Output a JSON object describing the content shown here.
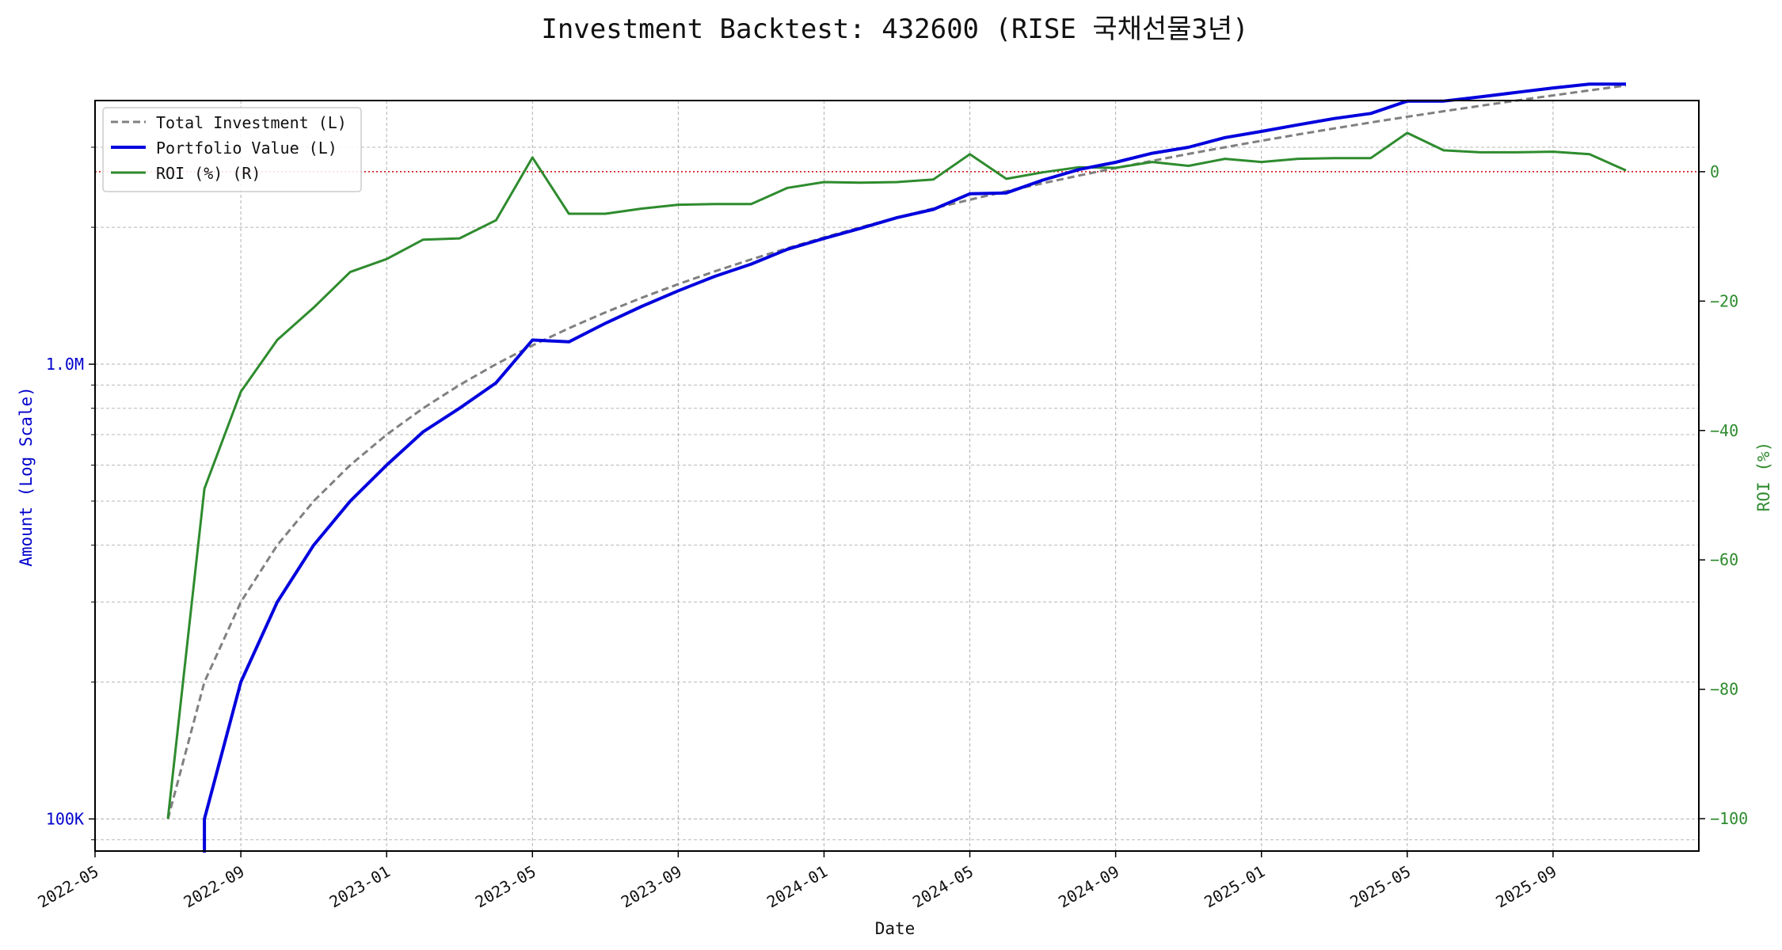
{
  "chart_data": {
    "type": "line",
    "title": "Investment Backtest: 432600 (RISE 국채선물3년)",
    "xlabel": "Date",
    "ylabel_left": "Amount (Log Scale)",
    "ylabel_right": "ROI (%)",
    "y_left_scale": "log",
    "x_range": [
      "2022-05",
      "2026-01"
    ],
    "y_left_range": [
      85000,
      3800000
    ],
    "y_right_range": [
      -105,
      11
    ],
    "x_ticks": [
      "2022-05",
      "2022-09",
      "2023-01",
      "2023-05",
      "2023-09",
      "2024-01",
      "2024-05",
      "2024-09",
      "2025-01",
      "2025-05",
      "2025-09"
    ],
    "y_left_ticks": [
      {
        "value": 100000,
        "label": "100K"
      },
      {
        "value": 1000000,
        "label": "1.0M"
      }
    ],
    "y_right_ticks": [
      {
        "value": 0,
        "label": "0"
      },
      {
        "value": -20,
        "label": "−20"
      },
      {
        "value": -40,
        "label": "−40"
      },
      {
        "value": -60,
        "label": "−60"
      },
      {
        "value": -80,
        "label": "−80"
      },
      {
        "value": -100,
        "label": "−100"
      }
    ],
    "grid": true,
    "legend_position": "top-left",
    "reference_line": {
      "axis": "right",
      "value": 0,
      "color": "#cc0000",
      "style": "dotted"
    },
    "x": [
      "2022-07",
      "2022-08",
      "2022-09",
      "2022-10",
      "2022-11",
      "2022-12",
      "2023-01",
      "2023-02",
      "2023-03",
      "2023-04",
      "2023-05",
      "2023-06",
      "2023-07",
      "2023-08",
      "2023-09",
      "2023-10",
      "2023-11",
      "2023-12",
      "2024-01",
      "2024-02",
      "2024-03",
      "2024-04",
      "2024-05",
      "2024-06",
      "2024-07",
      "2024-08",
      "2024-09",
      "2024-10",
      "2024-11",
      "2024-12",
      "2025-01",
      "2025-02",
      "2025-03",
      "2025-04",
      "2025-05",
      "2025-06",
      "2025-07",
      "2025-08",
      "2025-09",
      "2025-10",
      "2025-11"
    ],
    "series": [
      {
        "name": "Total Investment (L)",
        "axis": "left",
        "color": "#808080",
        "style": "dashed",
        "values": [
          100000,
          200000,
          300000,
          400000,
          500000,
          600000,
          700000,
          800000,
          900000,
          1000000,
          1100000,
          1200000,
          1300000,
          1400000,
          1500000,
          1600000,
          1700000,
          1800000,
          1900000,
          2000000,
          2100000,
          2200000,
          2300000,
          2400000,
          2500000,
          2600000,
          2700000,
          2800000,
          2900000,
          3000000,
          3100000,
          3200000,
          3300000,
          3400000,
          3500000,
          3600000,
          3700000,
          3800000,
          3900000,
          4000000,
          4100000
        ]
      },
      {
        "name": "Portfolio Value (L)",
        "axis": "left",
        "color": "#0000dd",
        "style": "solid",
        "values": [
          null,
          100000,
          200000,
          300000,
          400000,
          500000,
          600000,
          710000,
          800000,
          910000,
          1130000,
          1120000,
          1230000,
          1340000,
          1450000,
          1560000,
          1660000,
          1790000,
          1890000,
          1990000,
          2100000,
          2190000,
          2370000,
          2380000,
          2540000,
          2680000,
          2780000,
          2910000,
          3000000,
          3150000,
          3250000,
          3360000,
          3470000,
          3560000,
          3790000,
          3790000,
          3870000,
          3960000,
          4050000,
          4130000,
          4130000
        ]
      },
      {
        "name": "ROI (%) (R)",
        "axis": "right",
        "color": "#2e8b2e",
        "style": "solid",
        "values": [
          -100,
          -49,
          -34,
          -26,
          -21,
          -15.5,
          -13.5,
          -10.5,
          -10.3,
          -7.5,
          2.2,
          -6.5,
          -6.5,
          -5.7,
          -5.1,
          -5,
          -5,
          -2.5,
          -1.6,
          -1.7,
          -1.6,
          -1.2,
          2.7,
          -1.1,
          -0.1,
          0.7,
          0.6,
          1.5,
          0.9,
          2,
          1.5,
          2,
          2.1,
          2.1,
          6,
          3.3,
          3,
          3,
          3.1,
          2.7,
          0.2
        ]
      }
    ]
  }
}
